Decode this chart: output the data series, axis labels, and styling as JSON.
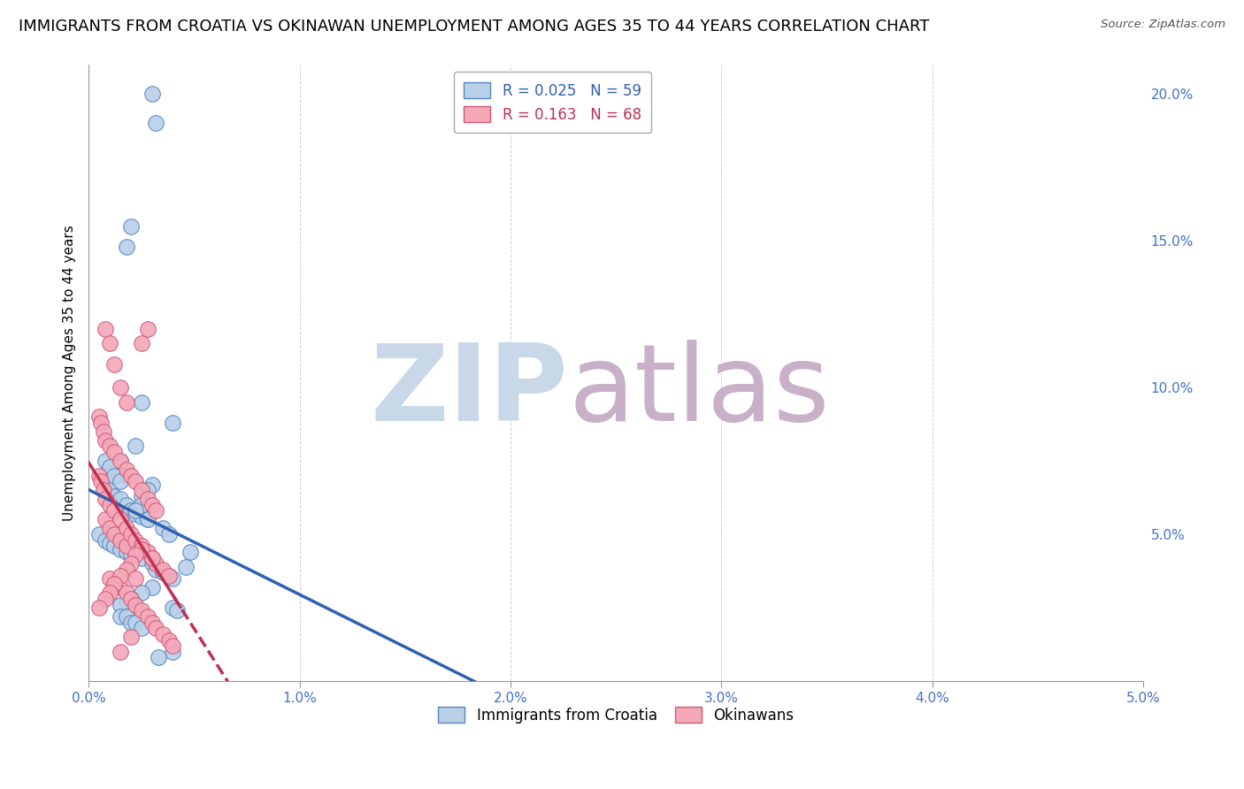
{
  "title": "IMMIGRANTS FROM CROATIA VS OKINAWAN UNEMPLOYMENT AMONG AGES 35 TO 44 YEARS CORRELATION CHART",
  "source": "Source: ZipAtlas.com",
  "ylabel": "Unemployment Among Ages 35 to 44 years",
  "r_blue": 0.025,
  "n_blue": 59,
  "r_pink": 0.163,
  "n_pink": 68,
  "blue_color": "#b8d0e8",
  "pink_color": "#f4a8b8",
  "blue_edge_color": "#5585c0",
  "pink_edge_color": "#d05878",
  "blue_line_color": "#3060b0",
  "pink_line_color": "#c03050",
  "watermark_zip_color": "#c8d8e8",
  "watermark_atlas_color": "#c8b0c8",
  "blue_scatter_x": [
    0.003,
    0.0032,
    0.002,
    0.0018,
    0.0025,
    0.004,
    0.0022,
    0.0015,
    0.0018,
    0.0008,
    0.001,
    0.0012,
    0.0015,
    0.0018,
    0.002,
    0.0022,
    0.0025,
    0.0028,
    0.0005,
    0.0008,
    0.001,
    0.0012,
    0.0015,
    0.0018,
    0.002,
    0.0025,
    0.003,
    0.0032,
    0.0035,
    0.0038,
    0.004,
    0.003,
    0.0025,
    0.002,
    0.0018,
    0.0015,
    0.004,
    0.0042,
    0.0015,
    0.0018,
    0.002,
    0.0022,
    0.0025,
    0.0008,
    0.001,
    0.0012,
    0.0015,
    0.003,
    0.0028,
    0.0025,
    0.0025,
    0.0022,
    0.0028,
    0.0035,
    0.0038,
    0.0048,
    0.0046,
    0.004,
    0.0033
  ],
  "blue_scatter_y": [
    0.2,
    0.19,
    0.155,
    0.148,
    0.095,
    0.088,
    0.08,
    0.075,
    0.07,
    0.068,
    0.065,
    0.063,
    0.062,
    0.06,
    0.058,
    0.057,
    0.056,
    0.055,
    0.05,
    0.048,
    0.047,
    0.046,
    0.045,
    0.044,
    0.043,
    0.042,
    0.04,
    0.038,
    0.037,
    0.036,
    0.035,
    0.032,
    0.03,
    0.028,
    0.027,
    0.026,
    0.025,
    0.024,
    0.022,
    0.022,
    0.02,
    0.02,
    0.018,
    0.075,
    0.073,
    0.07,
    0.068,
    0.067,
    0.065,
    0.063,
    0.06,
    0.058,
    0.055,
    0.052,
    0.05,
    0.044,
    0.039,
    0.01,
    0.008
  ],
  "pink_scatter_x": [
    0.0008,
    0.001,
    0.0012,
    0.0015,
    0.0018,
    0.0005,
    0.0006,
    0.0007,
    0.0008,
    0.001,
    0.0012,
    0.0015,
    0.0018,
    0.002,
    0.0022,
    0.0025,
    0.0028,
    0.003,
    0.0032,
    0.0008,
    0.001,
    0.0012,
    0.0015,
    0.0018,
    0.0005,
    0.0006,
    0.0007,
    0.0008,
    0.001,
    0.0012,
    0.0015,
    0.0018,
    0.002,
    0.0022,
    0.0025,
    0.0028,
    0.003,
    0.0032,
    0.0035,
    0.0038,
    0.001,
    0.0012,
    0.0015,
    0.0018,
    0.002,
    0.0022,
    0.0025,
    0.0028,
    0.003,
    0.0032,
    0.0035,
    0.0038,
    0.004,
    0.0025,
    0.0022,
    0.002,
    0.0018,
    0.0015,
    0.0012,
    0.001,
    0.0008,
    0.0005,
    0.0028,
    0.0025,
    0.0022,
    0.003,
    0.0015,
    0.002
  ],
  "pink_scatter_y": [
    0.12,
    0.115,
    0.108,
    0.1,
    0.095,
    0.09,
    0.088,
    0.085,
    0.082,
    0.08,
    0.078,
    0.075,
    0.072,
    0.07,
    0.068,
    0.065,
    0.062,
    0.06,
    0.058,
    0.055,
    0.052,
    0.05,
    0.048,
    0.046,
    0.07,
    0.068,
    0.065,
    0.062,
    0.06,
    0.058,
    0.055,
    0.052,
    0.05,
    0.048,
    0.046,
    0.044,
    0.042,
    0.04,
    0.038,
    0.036,
    0.035,
    0.033,
    0.032,
    0.03,
    0.028,
    0.026,
    0.024,
    0.022,
    0.02,
    0.018,
    0.016,
    0.014,
    0.012,
    0.045,
    0.043,
    0.04,
    0.038,
    0.036,
    0.033,
    0.03,
    0.028,
    0.025,
    0.12,
    0.115,
    0.035,
    0.042,
    0.01,
    0.015
  ],
  "xlim": [
    0.0,
    0.05
  ],
  "ylim": [
    0.0,
    0.21
  ],
  "xticks": [
    0.0,
    0.01,
    0.02,
    0.03,
    0.04,
    0.05
  ],
  "xtick_labels": [
    "0.0%",
    "1.0%",
    "2.0%",
    "3.0%",
    "4.0%",
    "5.0%"
  ],
  "yticks_right": [
    0.05,
    0.1,
    0.15,
    0.2
  ],
  "ytick_labels_right": [
    "5.0%",
    "10.0%",
    "15.0%",
    "20.0%"
  ],
  "title_fontsize": 13,
  "axis_fontsize": 11,
  "tick_fontsize": 11,
  "legend_fontsize": 12
}
